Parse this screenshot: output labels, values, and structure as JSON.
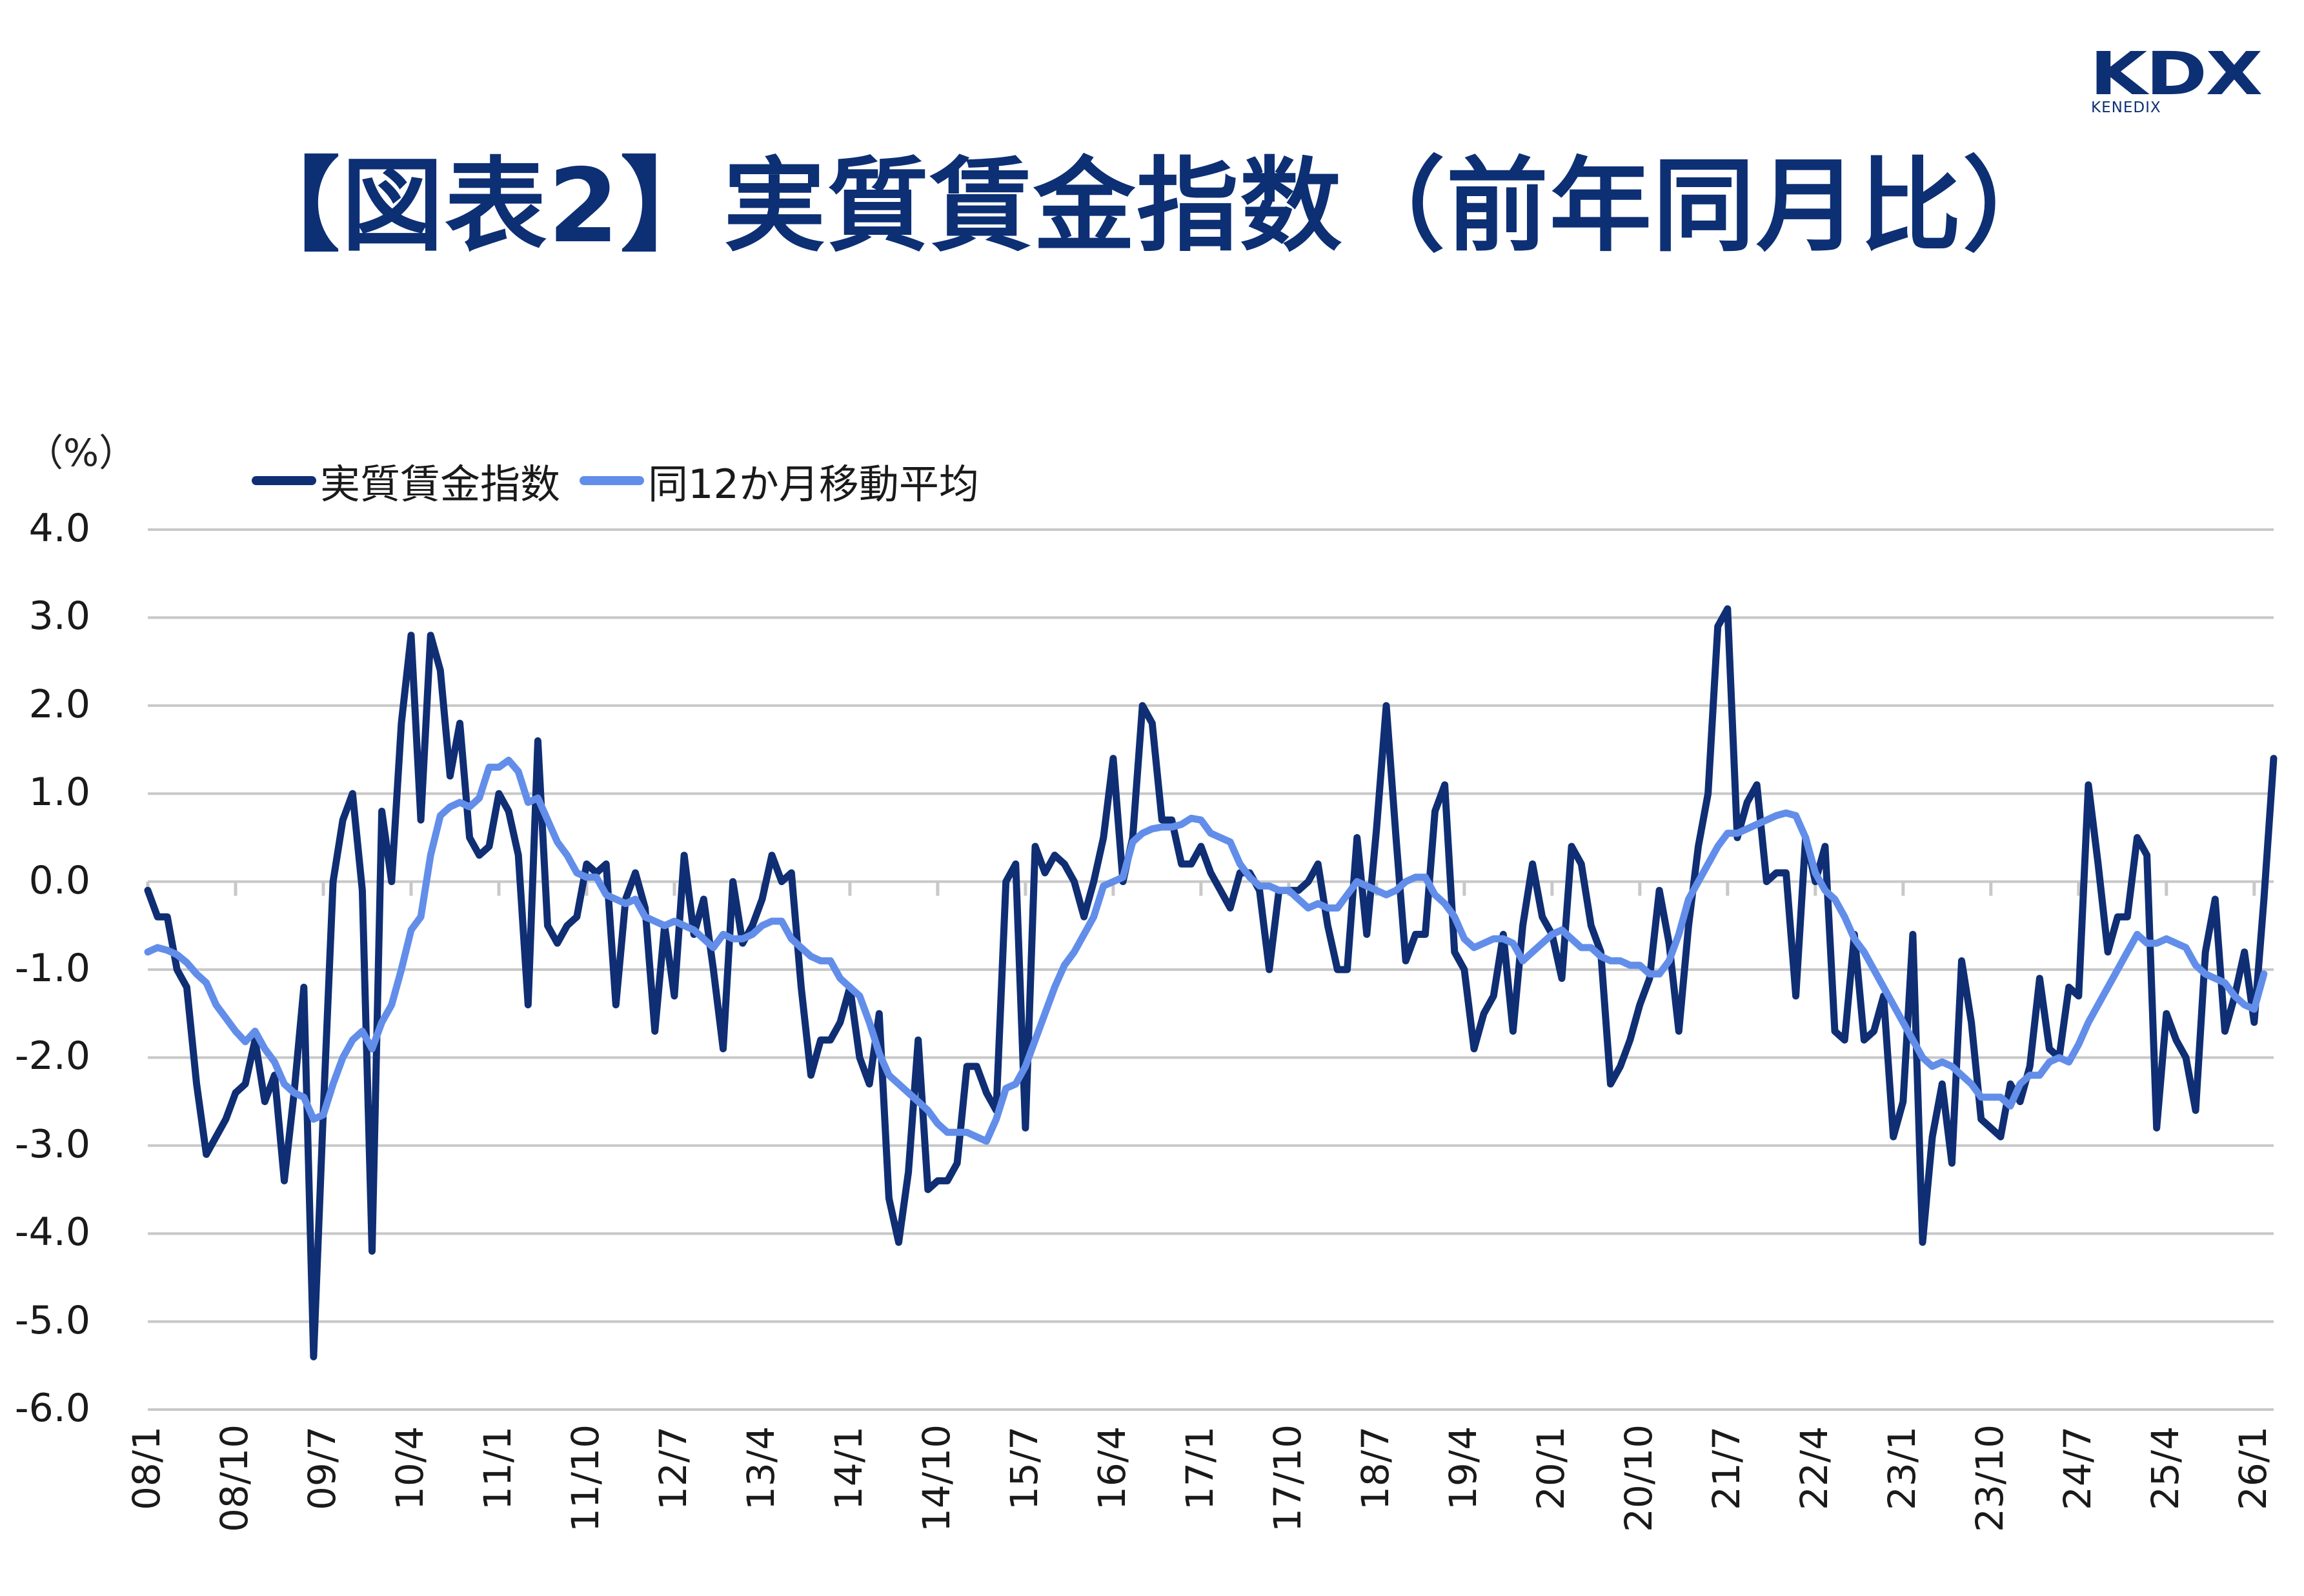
{
  "header": {
    "logo_main": "KDX",
    "logo_sub": "KENEDIX",
    "title": "【図表2】実質賃金指数（前年同月比）"
  },
  "colors": {
    "brand": "#0d2f74",
    "series_main": "#0f2e73",
    "series_ma": "#628eea",
    "grid": "#c8c8c8"
  },
  "chart_data": {
    "type": "line",
    "title": "【図表2】実質賃金指数（前年同月比）",
    "xlabel": "",
    "ylabel": "（%）",
    "ylim": [
      -6.0,
      4.0
    ],
    "yticks": [
      "4.0",
      "3.0",
      "2.0",
      "1.0",
      "0.0",
      "-1.0",
      "-2.0",
      "-3.0",
      "-4.0",
      "-5.0",
      "-6.0"
    ],
    "grid": true,
    "legend_position": "top-left",
    "x_start": "2008/1",
    "x_end": "2026/1",
    "x_tick_labels": [
      "08/1",
      "08/10",
      "09/7",
      "10/4",
      "11/1",
      "11/10",
      "12/7",
      "13/4",
      "14/1",
      "14/10",
      "15/7",
      "16/4",
      "17/1",
      "17/10",
      "18/7",
      "19/4",
      "20/1",
      "20/10",
      "21/7",
      "22/4",
      "23/1",
      "23/10",
      "24/7",
      "25/4",
      "26/1"
    ],
    "series": [
      {
        "name": "実質賃金指数",
        "values": [
          -0.1,
          -0.4,
          -0.4,
          -1.0,
          -1.2,
          -2.3,
          -3.1,
          -2.9,
          -2.7,
          -2.4,
          -2.3,
          -1.8,
          -2.5,
          -2.2,
          -3.4,
          -2.4,
          -1.2,
          -5.4,
          -2.6,
          0.0,
          0.7,
          1.0,
          -0.1,
          -4.2,
          0.8,
          0.0,
          1.8,
          2.8,
          0.7,
          2.8,
          2.4,
          1.2,
          1.8,
          0.5,
          0.3,
          0.4,
          1.0,
          0.8,
          0.3,
          -1.4,
          1.6,
          -0.5,
          -0.7,
          -0.5,
          -0.4,
          0.2,
          0.1,
          0.2,
          -1.4,
          -0.2,
          0.1,
          -0.3,
          -1.7,
          -0.5,
          -1.3,
          0.3,
          -0.6,
          -0.2,
          -1.0,
          -1.9,
          0.0,
          -0.7,
          -0.5,
          -0.2,
          0.3,
          0.0,
          0.1,
          -1.2,
          -2.2,
          -1.8,
          -1.8,
          -1.6,
          -1.2,
          -2.0,
          -2.3,
          -1.5,
          -3.6,
          -4.1,
          -3.3,
          -1.8,
          -3.5,
          -3.4,
          -3.4,
          -3.2,
          -2.1,
          -2.1,
          -2.4,
          -2.6,
          0.0,
          0.2,
          -2.8,
          0.4,
          0.1,
          0.3,
          0.2,
          0.0,
          -0.4,
          0.0,
          0.5,
          1.4,
          0.0,
          0.5,
          2.0,
          1.8,
          0.7,
          0.7,
          0.2,
          0.2,
          0.4,
          0.1,
          -0.1,
          -0.3,
          0.1,
          0.1,
          -0.1,
          -1.0,
          -0.1,
          -0.1,
          -0.1,
          0.0,
          0.2,
          -0.5,
          -1.0,
          -1.0,
          0.5,
          -0.6,
          0.6,
          2.0,
          0.5,
          -0.9,
          -0.6,
          -0.6,
          0.8,
          1.1,
          -0.8,
          -1.0,
          -1.9,
          -1.5,
          -1.3,
          -0.6,
          -1.7,
          -0.5,
          0.2,
          -0.4,
          -0.6,
          -1.1,
          0.4,
          0.2,
          -0.5,
          -0.8,
          -2.3,
          -2.1,
          -1.8,
          -1.4,
          -1.1,
          -0.1,
          -0.7,
          -1.7,
          -0.5,
          0.4,
          1.0,
          2.9,
          3.1,
          0.5,
          0.9,
          1.1,
          0.0,
          0.1,
          0.1,
          -1.3,
          0.5,
          0.0,
          0.4,
          -1.7,
          -1.8,
          -0.6,
          -1.8,
          -1.7,
          -1.3,
          -2.9,
          -2.5,
          -0.6,
          -4.1,
          -2.9,
          -2.3,
          -3.2,
          -0.9,
          -1.6,
          -2.7,
          -2.8,
          -2.9,
          -2.3,
          -2.5,
          -2.1,
          -1.1,
          -1.9,
          -2.0,
          -1.2,
          -1.3,
          1.1,
          0.2,
          -0.8,
          -0.4,
          -0.4,
          0.5,
          0.3,
          -2.8,
          -1.5,
          -1.8,
          -2.0,
          -2.6,
          -0.8,
          -0.2,
          -1.7,
          -1.3,
          -0.8,
          -1.6,
          -0.2,
          1.4
        ]
      },
      {
        "name": "同12か月移動平均",
        "values": [
          -0.8,
          -0.75,
          -0.78,
          -0.83,
          -0.92,
          -1.05,
          -1.15,
          -1.4,
          -1.55,
          -1.7,
          -1.82,
          -1.7,
          -1.9,
          -2.05,
          -2.3,
          -2.4,
          -2.45,
          -2.7,
          -2.65,
          -2.3,
          -2.0,
          -1.8,
          -1.7,
          -1.9,
          -1.6,
          -1.4,
          -1.0,
          -0.55,
          -0.4,
          0.3,
          0.75,
          0.85,
          0.9,
          0.85,
          0.95,
          1.3,
          1.3,
          1.38,
          1.25,
          0.9,
          0.95,
          0.7,
          0.45,
          0.3,
          0.1,
          0.05,
          0.05,
          -0.15,
          -0.2,
          -0.25,
          -0.2,
          -0.4,
          -0.45,
          -0.5,
          -0.45,
          -0.5,
          -0.55,
          -0.65,
          -0.75,
          -0.6,
          -0.65,
          -0.65,
          -0.6,
          -0.5,
          -0.45,
          -0.45,
          -0.65,
          -0.75,
          -0.85,
          -0.9,
          -0.9,
          -1.1,
          -1.2,
          -1.3,
          -1.6,
          -1.95,
          -2.2,
          -2.3,
          -2.4,
          -2.5,
          -2.6,
          -2.75,
          -2.85,
          -2.85,
          -2.85,
          -2.9,
          -2.95,
          -2.7,
          -2.35,
          -2.3,
          -2.1,
          -1.8,
          -1.5,
          -1.2,
          -0.95,
          -0.8,
          -0.6,
          -0.4,
          -0.05,
          0.0,
          0.05,
          0.45,
          0.55,
          0.6,
          0.62,
          0.62,
          0.65,
          0.72,
          0.7,
          0.55,
          0.5,
          0.45,
          0.2,
          0.05,
          -0.05,
          -0.05,
          -0.1,
          -0.1,
          -0.2,
          -0.3,
          -0.25,
          -0.3,
          -0.3,
          -0.15,
          0.0,
          -0.05,
          -0.1,
          -0.15,
          -0.1,
          0.0,
          0.05,
          0.05,
          -0.15,
          -0.25,
          -0.4,
          -0.65,
          -0.75,
          -0.7,
          -0.65,
          -0.65,
          -0.7,
          -0.9,
          -0.8,
          -0.7,
          -0.6,
          -0.55,
          -0.65,
          -0.75,
          -0.75,
          -0.85,
          -0.9,
          -0.9,
          -0.95,
          -0.95,
          -1.05,
          -1.05,
          -0.9,
          -0.6,
          -0.2,
          0.0,
          0.2,
          0.4,
          0.55,
          0.55,
          0.6,
          0.65,
          0.7,
          0.75,
          0.78,
          0.75,
          0.5,
          0.1,
          -0.1,
          -0.2,
          -0.4,
          -0.65,
          -0.8,
          -1.0,
          -1.2,
          -1.4,
          -1.6,
          -1.8,
          -2.0,
          -2.1,
          -2.05,
          -2.1,
          -2.2,
          -2.3,
          -2.45,
          -2.45,
          -2.45,
          -2.55,
          -2.3,
          -2.2,
          -2.2,
          -2.05,
          -2.0,
          -2.05,
          -1.85,
          -1.6,
          -1.4,
          -1.2,
          -1.0,
          -0.8,
          -0.6,
          -0.7,
          -0.7,
          -0.65,
          -0.7,
          -0.75,
          -0.95,
          -1.05,
          -1.1,
          -1.15,
          -1.3,
          -1.4,
          -1.45,
          -1.05
        ]
      }
    ]
  },
  "axis": {
    "unit_label": "（%）"
  },
  "legend": {
    "items": [
      {
        "label": "実質賃金指数",
        "color": "#0f2e73"
      },
      {
        "label": "同12か月移動平均",
        "color": "#628eea"
      }
    ]
  }
}
